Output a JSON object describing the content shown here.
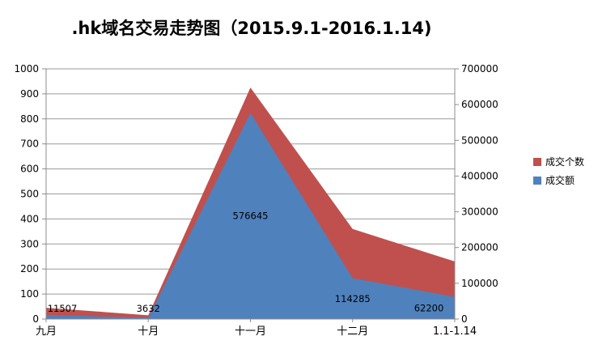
{
  "title": ".hk域名交易走势图（2015.9.1-2016.1.14)",
  "chart_data": {
    "type": "area",
    "title": ".hk域名交易走势图（2015.9.1-2016.1.14)",
    "categories": [
      "九月",
      "十月",
      "十一月",
      "十二月",
      "1.1-1.14"
    ],
    "series": [
      {
        "name": "成交个数",
        "axis": "left",
        "color": "#C0504D",
        "values": [
          45,
          15,
          925,
          360,
          230
        ],
        "values_estimated_from_pixels": true
      },
      {
        "name": "成交额",
        "axis": "right",
        "color": "#4F81BD",
        "values": [
          11507,
          3632,
          576645,
          114285,
          62200
        ],
        "data_labels": [
          "11507",
          "3632",
          "576645",
          "114285",
          "62200"
        ]
      }
    ],
    "left_axis": {
      "min": 0,
      "max": 1000,
      "step": 100,
      "ticks": [
        "0",
        "100",
        "200",
        "300",
        "400",
        "500",
        "600",
        "700",
        "800",
        "900",
        "1000"
      ]
    },
    "right_axis": {
      "min": 0,
      "max": 700000,
      "step": 100000,
      "ticks": [
        "0",
        "100000",
        "200000",
        "300000",
        "400000",
        "500000",
        "600000",
        "700000"
      ]
    },
    "legend": {
      "position": "right",
      "entries": [
        "成交个数",
        "成交额"
      ]
    },
    "grid": true,
    "colors": {
      "grid": "#9a9a9a",
      "axis": "#8c8c8c",
      "text": "#000000",
      "background": "#ffffff"
    }
  }
}
